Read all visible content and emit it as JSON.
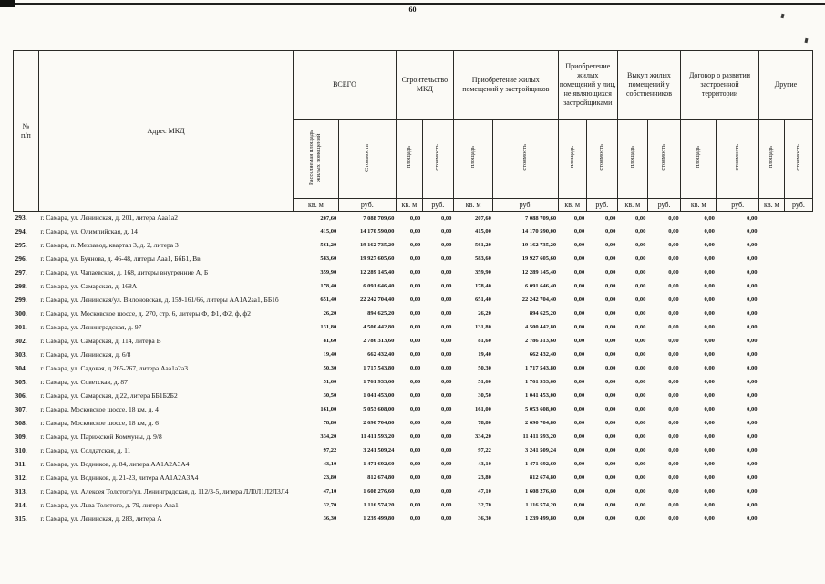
{
  "page": {
    "number": "60"
  },
  "table": {
    "header": {
      "col_num": "№\nп/п",
      "col_address": "Адрес МКД",
      "groups": [
        {
          "label": "ВСЕГО",
          "sub": [
            "Расселяемая площадь жилых помещений",
            "Стоимость"
          ]
        },
        {
          "label": "Строительство МКД",
          "sub": [
            "площадь",
            "стоимость"
          ]
        },
        {
          "label": "Приобретение жилых помещений у застройщиков",
          "sub": [
            "площадь",
            "стоимость"
          ]
        },
        {
          "label": "Приобретение жилых помещений у лиц, не являющихся застройщиками",
          "sub": [
            "площадь",
            "стоимость"
          ]
        },
        {
          "label": "Выкуп жилых помещений у собственников",
          "sub": [
            "площадь",
            "стоимость"
          ]
        },
        {
          "label": "Договор о развитии застроенной территории",
          "sub": [
            "площадь",
            "стоимость"
          ]
        },
        {
          "label": "Другие",
          "sub": [
            "площадь",
            "стоимость"
          ]
        }
      ],
      "units": [
        "кв. м",
        "руб.",
        "кв. м",
        "руб.",
        "кв. м",
        "руб.",
        "кв. м",
        "руб.",
        "кв. м",
        "руб.",
        "кв. м",
        "руб.",
        "кв. м",
        "руб."
      ]
    },
    "rows": [
      {
        "num": "293.",
        "address": "г. Самара, ул. Ленинская, д. 201, литера Ааа1а2",
        "values": [
          "207,60",
          "7 088 709,60",
          "0,00",
          "0,00",
          "207,60",
          "7 088 709,60",
          "0,00",
          "0,00",
          "0,00",
          "0,00",
          "0,00",
          "0,00",
          "",
          ""
        ]
      },
      {
        "num": "294.",
        "address": "г. Самара, ул. Олимпийская, д. 14",
        "values": [
          "415,00",
          "14 170 590,00",
          "0,00",
          "0,00",
          "415,00",
          "14 170 590,00",
          "0,00",
          "0,00",
          "0,00",
          "0,00",
          "0,00",
          "0,00",
          "",
          ""
        ]
      },
      {
        "num": "295.",
        "address": "г. Самара, п. Мехзавод, квартал 3, д. 2, литера 3",
        "values": [
          "561,20",
          "19 162 735,20",
          "0,00",
          "0,00",
          "561,20",
          "19 162 735,20",
          "0,00",
          "0,00",
          "0,00",
          "0,00",
          "0,00",
          "0,00",
          "",
          ""
        ]
      },
      {
        "num": "296.",
        "address": "г. Самара, ул. Буянова, д. 46-48, литеры Ааа1, БбБ1, Вв",
        "values": [
          "583,60",
          "19 927 605,60",
          "0,00",
          "0,00",
          "583,60",
          "19 927 605,60",
          "0,00",
          "0,00",
          "0,00",
          "0,00",
          "0,00",
          "0,00",
          "",
          ""
        ]
      },
      {
        "num": "297.",
        "address": "г. Самара, ул. Чапаевская, д. 168, литеры внутренние А, Б",
        "values": [
          "359,90",
          "12 289 145,40",
          "0,00",
          "0,00",
          "359,90",
          "12 289 145,40",
          "0,00",
          "0,00",
          "0,00",
          "0,00",
          "0,00",
          "0,00",
          "",
          ""
        ]
      },
      {
        "num": "298.",
        "address": "г. Самара, ул. Самарская, д. 168А",
        "values": [
          "178,40",
          "6 091 646,40",
          "0,00",
          "0,00",
          "178,40",
          "6 091 646,40",
          "0,00",
          "0,00",
          "0,00",
          "0,00",
          "0,00",
          "0,00",
          "",
          ""
        ]
      },
      {
        "num": "299.",
        "address": "г. Самара, ул. Ленинская/ул. Вилоновская, д. 159-161/66, литеры АА1А2аа1, ББ1б",
        "values": [
          "651,40",
          "22 242 704,40",
          "0,00",
          "0,00",
          "651,40",
          "22 242 704,40",
          "0,00",
          "0,00",
          "0,00",
          "0,00",
          "0,00",
          "0,00",
          "",
          ""
        ]
      },
      {
        "num": "300.",
        "address": "г. Самара, ул. Московское шоссе, д. 270, стр. 6,  литеры Ф, Ф1, Ф2, ф, ф2",
        "values": [
          "26,20",
          "894 625,20",
          "0,00",
          "0,00",
          "26,20",
          "894 625,20",
          "0,00",
          "0,00",
          "0,00",
          "0,00",
          "0,00",
          "0,00",
          "",
          ""
        ]
      },
      {
        "num": "301.",
        "address": "г. Самара, ул. Ленинградская, д. 97",
        "values": [
          "131,80",
          "4 500 442,80",
          "0,00",
          "0,00",
          "131,80",
          "4 500 442,80",
          "0,00",
          "0,00",
          "0,00",
          "0,00",
          "0,00",
          "0,00",
          "",
          ""
        ]
      },
      {
        "num": "302.",
        "address": "г. Самара, ул. Самарская, д. 114, литера В",
        "values": [
          "81,60",
          "2 786 313,60",
          "0,00",
          "0,00",
          "81,60",
          "2 786 313,60",
          "0,00",
          "0,00",
          "0,00",
          "0,00",
          "0,00",
          "0,00",
          "",
          ""
        ]
      },
      {
        "num": "303.",
        "address": "г. Самара, ул. Ленинская, д. 6/8",
        "values": [
          "19,40",
          "662 432,40",
          "0,00",
          "0,00",
          "19,40",
          "662 432,40",
          "0,00",
          "0,00",
          "0,00",
          "0,00",
          "0,00",
          "0,00",
          "",
          ""
        ]
      },
      {
        "num": "304.",
        "address": "г. Самара, ул. Садовая, д.265-267, литера Ааа1а2а3",
        "values": [
          "50,30",
          "1 717 543,80",
          "0,00",
          "0,00",
          "50,30",
          "1 717 543,80",
          "0,00",
          "0,00",
          "0,00",
          "0,00",
          "0,00",
          "0,00",
          "",
          ""
        ]
      },
      {
        "num": "305.",
        "address": "г. Самара, ул. Советская, д. 87",
        "values": [
          "51,60",
          "1 761 933,60",
          "0,00",
          "0,00",
          "51,60",
          "1 761 933,60",
          "0,00",
          "0,00",
          "0,00",
          "0,00",
          "0,00",
          "0,00",
          "",
          ""
        ]
      },
      {
        "num": "306.",
        "address": "г. Самара, ул. Самарская, д.22, литера ББ1Б2Б2",
        "values": [
          "30,50",
          "1 041 453,00",
          "0,00",
          "0,00",
          "30,50",
          "1 041 453,00",
          "0,00",
          "0,00",
          "0,00",
          "0,00",
          "0,00",
          "0,00",
          "",
          ""
        ]
      },
      {
        "num": "307.",
        "address": "г. Самара, Московское шоссе, 18 км, д. 4",
        "values": [
          "161,00",
          "5 053 608,00",
          "0,00",
          "0,00",
          "161,00",
          "5 053 608,00",
          "0,00",
          "0,00",
          "0,00",
          "0,00",
          "0,00",
          "0,00",
          "",
          ""
        ]
      },
      {
        "num": "308.",
        "address": "г. Самара, Московское шоссе, 18 км, д. 6",
        "values": [
          "78,80",
          "2 690 704,80",
          "0,00",
          "0,00",
          "78,80",
          "2 690 704,80",
          "0,00",
          "0,00",
          "0,00",
          "0,00",
          "0,00",
          "0,00",
          "",
          ""
        ]
      },
      {
        "num": "309.",
        "address": "г. Самара, ул. Парижской Коммуны, д. 9/8",
        "values": [
          "334,20",
          "11 411 593,20",
          "0,00",
          "0,00",
          "334,20",
          "11 411 593,20",
          "0,00",
          "0,00",
          "0,00",
          "0,00",
          "0,00",
          "0,00",
          "",
          ""
        ]
      },
      {
        "num": "310.",
        "address": "г. Самара, ул. Солдатская, д. 11",
        "values": [
          "97,22",
          "3 241 509,24",
          "0,00",
          "0,00",
          "97,22",
          "3 241 509,24",
          "0,00",
          "0,00",
          "0,00",
          "0,00",
          "0,00",
          "0,00",
          "",
          ""
        ]
      },
      {
        "num": "311.",
        "address": "г. Самара, ул. Водников, д. 84, литера АА1А2А3А4",
        "values": [
          "43,10",
          "1 471 692,60",
          "0,00",
          "0,00",
          "43,10",
          "1 471 692,60",
          "0,00",
          "0,00",
          "0,00",
          "0,00",
          "0,00",
          "0,00",
          "",
          ""
        ]
      },
      {
        "num": "312.",
        "address": "г. Самара, ул. Водников, д. 21-23, литера АА1А2А3А4",
        "values": [
          "23,80",
          "812 674,80",
          "0,00",
          "0,00",
          "23,80",
          "812 674,80",
          "0,00",
          "0,00",
          "0,00",
          "0,00",
          "0,00",
          "0,00",
          "",
          ""
        ]
      },
      {
        "num": "313.",
        "address": "г. Самара, ул. Алексея Толстого/ул. Ленинградская, д. 112/3-5, литера ЛЛ0Л1Л2Л3Л4",
        "values": [
          "47,10",
          "1 608 276,60",
          "0,00",
          "0,00",
          "47,10",
          "1 608 276,60",
          "0,00",
          "0,00",
          "0,00",
          "0,00",
          "0,00",
          "0,00",
          "",
          ""
        ]
      },
      {
        "num": "314.",
        "address": "г. Самара, ул. Льва Толстого, д. 79, литера Ава1",
        "values": [
          "32,70",
          "1 116 574,20",
          "0,00",
          "0,00",
          "32,70",
          "1 116 574,20",
          "0,00",
          "0,00",
          "0,00",
          "0,00",
          "0,00",
          "0,00",
          "",
          ""
        ]
      },
      {
        "num": "315.",
        "address": "г. Самара, ул. Ленинская, д. 283, литера А",
        "values": [
          "36,30",
          "1 239 499,80",
          "0,00",
          "0,00",
          "36,30",
          "1 239 499,80",
          "0,00",
          "0,00",
          "0,00",
          "0,00",
          "0,00",
          "0,00",
          "",
          ""
        ]
      }
    ]
  }
}
